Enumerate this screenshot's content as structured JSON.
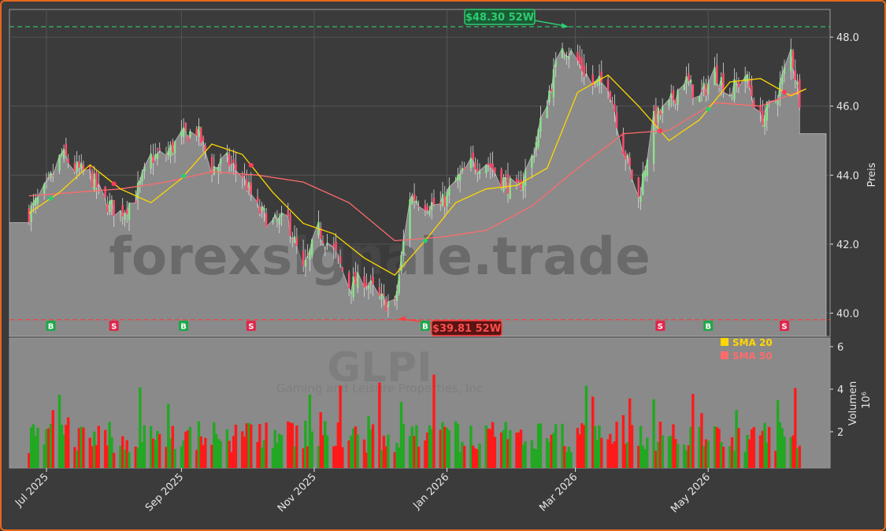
{
  "chart_data": {
    "type": "candlestick",
    "ticker": "GLPI",
    "watermark": "forexsignale.trade",
    "company_watermark": "Gaming and Leisure Properties, Inc",
    "price_axis_label": "Preis",
    "volume_axis_label": "Volumen",
    "volume_axis_unit": "10^6",
    "price_ylim": [
      39.8,
      48.8
    ],
    "price_ticks": [
      "40.0",
      "42.0",
      "44.0",
      "46.0",
      "48.0"
    ],
    "volume_ylim": [
      0.3,
      6.9
    ],
    "volume_ticks": [
      "2",
      "4",
      "6"
    ],
    "x_ticks": [
      "Jul 2025",
      "Sep 2025",
      "Nov 2025",
      "Jan 2026",
      "Mar 2026",
      "May 2026"
    ],
    "high_52w": {
      "label": "$48.30 52W",
      "value": 48.3
    },
    "low_52w": {
      "label": "$39.81 52W",
      "value": 39.81
    },
    "signals": [
      {
        "type": "B",
        "date": "2025-07-03"
      },
      {
        "type": "S",
        "date": "2025-08-01"
      },
      {
        "type": "B",
        "date": "2025-09-02"
      },
      {
        "type": "S",
        "date": "2025-10-03"
      },
      {
        "type": "B",
        "date": "2025-12-22"
      },
      {
        "type": "S",
        "date": "2026-04-09"
      },
      {
        "type": "B",
        "date": "2026-05-01"
      },
      {
        "type": "S",
        "date": "2026-06-05"
      }
    ],
    "legend": [
      {
        "label": "SMA 20",
        "color": "#ffd700"
      },
      {
        "label": "SMA 50",
        "color": "#ff6b6b"
      }
    ],
    "colors": {
      "up": "#22a822",
      "down": "#ff1a1a",
      "candle_up": "#8de08d",
      "candle_down": "#ff4d6d",
      "area": "#8a8a8a",
      "background": "#3b3b3b",
      "high_line": "#2ecc71",
      "low_line": "#ff3b3b"
    },
    "close_path": [
      [
        "2025-06-23",
        42.9
      ],
      [
        "2025-07-01",
        43.6
      ],
      [
        "2025-07-08",
        44.6
      ],
      [
        "2025-07-14",
        44.2
      ],
      [
        "2025-07-21",
        44.0
      ],
      [
        "2025-07-28",
        43.2
      ],
      [
        "2025-08-04",
        42.9
      ],
      [
        "2025-08-11",
        43.4
      ],
      [
        "2025-08-18",
        44.5
      ],
      [
        "2025-08-25",
        44.6
      ],
      [
        "2025-09-01",
        45.1
      ],
      [
        "2025-09-08",
        45.3
      ],
      [
        "2025-09-15",
        44.2
      ],
      [
        "2025-09-22",
        44.4
      ],
      [
        "2025-09-29",
        44.0
      ],
      [
        "2025-10-06",
        43.0
      ],
      [
        "2025-10-13",
        42.6
      ],
      [
        "2025-10-20",
        42.7
      ],
      [
        "2025-10-27",
        41.2
      ],
      [
        "2025-11-03",
        42.4
      ],
      [
        "2025-11-10",
        41.8
      ],
      [
        "2025-11-17",
        40.8
      ],
      [
        "2025-11-24",
        41.0
      ],
      [
        "2025-12-01",
        40.4
      ],
      [
        "2025-12-08",
        40.2
      ],
      [
        "2025-12-15",
        43.4
      ],
      [
        "2025-12-22",
        43.2
      ],
      [
        "2025-12-29",
        43.1
      ],
      [
        "2026-01-05",
        43.8
      ],
      [
        "2026-01-12",
        44.3
      ],
      [
        "2026-01-19",
        44.4
      ],
      [
        "2026-01-26",
        43.9
      ],
      [
        "2026-02-02",
        43.5
      ],
      [
        "2026-02-09",
        44.5
      ],
      [
        "2026-02-16",
        46.2
      ],
      [
        "2026-02-23",
        47.8
      ],
      [
        "2026-03-02",
        47.3
      ],
      [
        "2026-03-09",
        46.6
      ],
      [
        "2026-03-16",
        46.7
      ],
      [
        "2026-03-23",
        44.8
      ],
      [
        "2026-03-30",
        43.3
      ],
      [
        "2026-04-06",
        45.6
      ],
      [
        "2026-04-13",
        46.0
      ],
      [
        "2026-04-20",
        46.8
      ],
      [
        "2026-04-27",
        46.2
      ],
      [
        "2026-05-04",
        47.0
      ],
      [
        "2026-05-11",
        46.4
      ],
      [
        "2026-05-18",
        46.9
      ],
      [
        "2026-05-25",
        45.6
      ],
      [
        "2026-06-01",
        46.2
      ],
      [
        "2026-06-08",
        47.6
      ],
      [
        "2026-06-15",
        45.2
      ]
    ],
    "sma20_path": [
      [
        "2025-06-23",
        42.9
      ],
      [
        "2025-07-07",
        43.5
      ],
      [
        "2025-07-21",
        44.3
      ],
      [
        "2025-08-04",
        43.6
      ],
      [
        "2025-08-18",
        43.2
      ],
      [
        "2025-09-01",
        43.9
      ],
      [
        "2025-09-15",
        44.9
      ],
      [
        "2025-09-29",
        44.6
      ],
      [
        "2025-10-13",
        43.5
      ],
      [
        "2025-10-27",
        42.6
      ],
      [
        "2025-11-10",
        42.3
      ],
      [
        "2025-11-24",
        41.6
      ],
      [
        "2025-12-08",
        41.1
      ],
      [
        "2025-12-22",
        42.1
      ],
      [
        "2026-01-05",
        43.2
      ],
      [
        "2026-01-19",
        43.6
      ],
      [
        "2026-02-02",
        43.7
      ],
      [
        "2026-02-16",
        44.2
      ],
      [
        "2026-03-02",
        46.4
      ],
      [
        "2026-03-16",
        46.9
      ],
      [
        "2026-03-30",
        46.0
      ],
      [
        "2026-04-13",
        45.0
      ],
      [
        "2026-04-27",
        45.6
      ],
      [
        "2026-05-11",
        46.7
      ],
      [
        "2026-05-25",
        46.8
      ],
      [
        "2026-06-08",
        46.3
      ],
      [
        "2026-06-15",
        46.5
      ]
    ],
    "sma50_path": [
      [
        "2025-06-23",
        43.4
      ],
      [
        "2025-07-14",
        43.5
      ],
      [
        "2025-08-04",
        43.6
      ],
      [
        "2025-08-25",
        43.8
      ],
      [
        "2025-09-15",
        44.1
      ],
      [
        "2025-10-06",
        44.0
      ],
      [
        "2025-10-27",
        43.8
      ],
      [
        "2025-11-17",
        43.2
      ],
      [
        "2025-12-08",
        42.1
      ],
      [
        "2025-12-29",
        42.2
      ],
      [
        "2026-01-19",
        42.4
      ],
      [
        "2026-02-09",
        43.1
      ],
      [
        "2026-03-02",
        44.2
      ],
      [
        "2026-03-23",
        45.2
      ],
      [
        "2026-04-13",
        45.3
      ],
      [
        "2026-05-04",
        46.1
      ],
      [
        "2026-05-25",
        46.0
      ],
      [
        "2026-06-15",
        46.5
      ]
    ]
  }
}
